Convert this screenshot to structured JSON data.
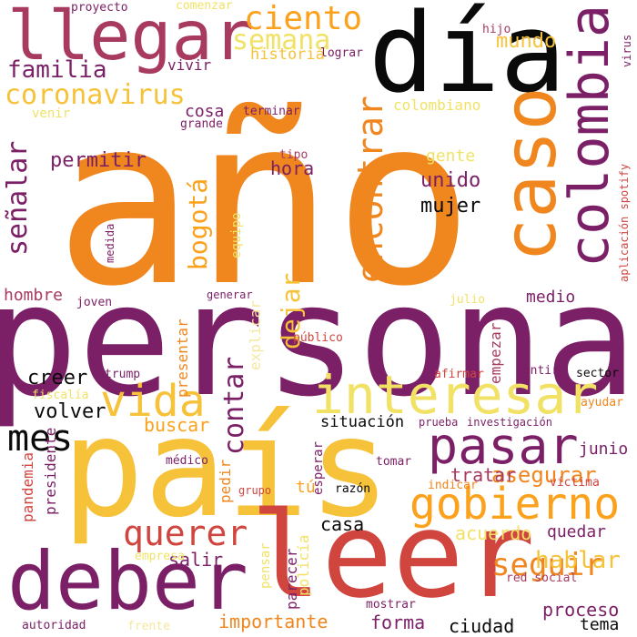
{
  "palette": {
    "black": "#0a0a0a",
    "purple": "#7b1f66",
    "magenta": "#a83a5f",
    "red": "#d1453f",
    "orange": "#f0861e",
    "amber": "#fba11c",
    "gold": "#f6c23a",
    "yellow": "#f1e266",
    "pale": "#f5e7a0"
  },
  "words": [
    {
      "id": "ano",
      "text": "año",
      "color": "orange",
      "rotated": false
    },
    {
      "id": "persona",
      "text": "persona",
      "color": "purple",
      "rotated": false
    },
    {
      "id": "pais",
      "text": "país",
      "color": "gold",
      "rotated": false
    },
    {
      "id": "leer",
      "text": "leer",
      "color": "red",
      "rotated": false
    },
    {
      "id": "dia",
      "text": "día",
      "color": "black",
      "rotated": false
    },
    {
      "id": "llegar",
      "text": "llegar",
      "color": "magenta",
      "rotated": false
    },
    {
      "id": "deber",
      "text": "deber",
      "color": "purple",
      "rotated": false
    },
    {
      "id": "caso",
      "text": "caso",
      "color": "orange",
      "rotated": true
    },
    {
      "id": "colombia",
      "text": "colombia",
      "color": "purple",
      "rotated": true
    },
    {
      "id": "interesar",
      "text": "interesar",
      "color": "yellow",
      "rotated": false
    },
    {
      "id": "pasar",
      "text": "pasar",
      "color": "purple",
      "rotated": false
    },
    {
      "id": "gobierno",
      "text": "gobierno",
      "color": "amber",
      "rotated": false
    },
    {
      "id": "vida",
      "text": "vida",
      "color": "gold",
      "rotated": false
    },
    {
      "id": "mes",
      "text": "mes",
      "color": "black",
      "rotated": false
    },
    {
      "id": "querer",
      "text": "querer",
      "color": "red",
      "rotated": false
    },
    {
      "id": "encontrar",
      "text": "encontrar",
      "color": "orange",
      "rotated": true
    },
    {
      "id": "ciento",
      "text": "ciento",
      "color": "amber",
      "rotated": false
    },
    {
      "id": "semana",
      "text": "semana",
      "color": "yellow",
      "rotated": false
    },
    {
      "id": "coronavirus",
      "text": "coronavirus",
      "color": "gold",
      "rotated": false
    },
    {
      "id": "familia",
      "text": "familia",
      "color": "purple",
      "rotated": false
    },
    {
      "id": "senalar",
      "text": "señalar",
      "color": "purple",
      "rotated": true
    },
    {
      "id": "bogota",
      "text": "bogotá",
      "color": "amber",
      "rotated": true
    },
    {
      "id": "contar",
      "text": "contar",
      "color": "purple",
      "rotated": true
    },
    {
      "id": "dejar",
      "text": "dejar",
      "color": "gold",
      "rotated": true
    },
    {
      "id": "seguir",
      "text": "seguir",
      "color": "orange",
      "rotated": false
    },
    {
      "id": "hablar",
      "text": "hablar",
      "color": "gold",
      "rotated": false
    },
    {
      "id": "asegurar",
      "text": "asegurar",
      "color": "orange",
      "rotated": false
    },
    {
      "id": "mundo",
      "text": "mundo",
      "color": "gold",
      "rotated": false
    },
    {
      "id": "historia",
      "text": "historia",
      "color": "gold",
      "rotated": false
    },
    {
      "id": "vivir",
      "text": "vivir",
      "color": "purple",
      "rotated": false
    },
    {
      "id": "permitir",
      "text": "permitir",
      "color": "purple",
      "rotated": false
    },
    {
      "id": "hora",
      "text": "hora",
      "color": "purple",
      "rotated": false
    },
    {
      "id": "unido",
      "text": "unido",
      "color": "purple",
      "rotated": false
    },
    {
      "id": "mujer",
      "text": "mujer",
      "color": "black",
      "rotated": false
    },
    {
      "id": "gente",
      "text": "gente",
      "color": "yellow",
      "rotated": false
    },
    {
      "id": "colombiano",
      "text": "colombiano",
      "color": "yellow",
      "rotated": false
    },
    {
      "id": "volver",
      "text": "volver",
      "color": "black",
      "rotated": false
    },
    {
      "id": "creer",
      "text": "creer",
      "color": "black",
      "rotated": false
    },
    {
      "id": "cosa",
      "text": "cosa",
      "color": "purple",
      "rotated": false
    },
    {
      "id": "medio",
      "text": "medio",
      "color": "purple",
      "rotated": false
    },
    {
      "id": "hombre",
      "text": "hombre",
      "color": "magenta",
      "rotated": false
    },
    {
      "id": "buscar",
      "text": "buscar",
      "color": "amber",
      "rotated": false
    },
    {
      "id": "situacion",
      "text": "situación",
      "color": "black",
      "rotated": false
    },
    {
      "id": "tratar",
      "text": "tratar",
      "color": "magenta",
      "rotated": false
    },
    {
      "id": "junio",
      "text": "junio",
      "color": "purple",
      "rotated": false
    },
    {
      "id": "acuerdo",
      "text": "acuerdo",
      "color": "yellow",
      "rotated": false
    },
    {
      "id": "quedar",
      "text": "quedar",
      "color": "purple",
      "rotated": false
    },
    {
      "id": "casa",
      "text": "casa",
      "color": "black",
      "rotated": false
    },
    {
      "id": "salir",
      "text": "salir",
      "color": "purple",
      "rotated": false
    },
    {
      "id": "importante",
      "text": "importante",
      "color": "orange",
      "rotated": false
    },
    {
      "id": "forma",
      "text": "forma",
      "color": "purple",
      "rotated": false
    },
    {
      "id": "ciudad",
      "text": "ciudad",
      "color": "black",
      "rotated": false
    },
    {
      "id": "proceso",
      "text": "proceso",
      "color": "purple",
      "rotated": false
    },
    {
      "id": "tema",
      "text": "tema",
      "color": "black",
      "rotated": false
    },
    {
      "id": "empezar",
      "text": "empezar",
      "color": "magenta",
      "rotated": true
    },
    {
      "id": "presentar",
      "text": "presentar",
      "color": "orange",
      "rotated": true
    },
    {
      "id": "explicar",
      "text": "explicar",
      "color": "pale",
      "rotated": true
    },
    {
      "id": "pandemia",
      "text": "pandemia",
      "color": "red",
      "rotated": true
    },
    {
      "id": "presidente",
      "text": "presidente",
      "color": "purple",
      "rotated": true
    },
    {
      "id": "pedir",
      "text": "pedir",
      "color": "orange",
      "rotated": true
    },
    {
      "id": "tu",
      "text": "tú",
      "color": "amber",
      "rotated": false
    },
    {
      "id": "esperar",
      "text": "esperar",
      "color": "purple",
      "rotated": true
    },
    {
      "id": "parecer",
      "text": "parecer",
      "color": "purple",
      "rotated": true
    },
    {
      "id": "policia",
      "text": "policía",
      "color": "yellow",
      "rotated": true
    },
    {
      "id": "pensar",
      "text": "pensar",
      "color": "yellow",
      "rotated": true
    },
    {
      "id": "equipo",
      "text": "equipo",
      "color": "yellow",
      "rotated": true
    },
    {
      "id": "proyecto",
      "text": "proyecto",
      "color": "purple",
      "rotated": false
    },
    {
      "id": "comenzar",
      "text": "comenzar",
      "color": "yellow",
      "rotated": false
    },
    {
      "id": "lograr",
      "text": "lograr",
      "color": "purple",
      "rotated": false
    },
    {
      "id": "hijo",
      "text": "hijo",
      "color": "magenta",
      "rotated": false
    },
    {
      "id": "virus",
      "text": "virus",
      "color": "purple",
      "rotated": true
    },
    {
      "id": "venir",
      "text": "venir",
      "color": "yellow",
      "rotated": false
    },
    {
      "id": "grande",
      "text": "grande",
      "color": "purple",
      "rotated": false
    },
    {
      "id": "terminar",
      "text": "terminar",
      "color": "purple",
      "rotated": false
    },
    {
      "id": "tipo",
      "text": "tipo",
      "color": "magenta",
      "rotated": false
    },
    {
      "id": "medida",
      "text": "medida",
      "color": "purple",
      "rotated": true
    },
    {
      "id": "aplicacion",
      "text": "aplicación spotify",
      "color": "red",
      "rotated": true
    },
    {
      "id": "joven",
      "text": "joven",
      "color": "purple",
      "rotated": false
    },
    {
      "id": "generar",
      "text": "generar",
      "color": "purple",
      "rotated": false
    },
    {
      "id": "julio",
      "text": "julio",
      "color": "yellow",
      "rotated": false
    },
    {
      "id": "publico",
      "text": "público",
      "color": "red",
      "rotated": false
    },
    {
      "id": "trump",
      "text": "trump",
      "color": "purple",
      "rotated": false
    },
    {
      "id": "afirmar",
      "text": "afirmar",
      "color": "red",
      "rotated": false
    },
    {
      "id": "sentir",
      "text": "sentir",
      "color": "purple",
      "rotated": false
    },
    {
      "id": "sector",
      "text": "sector",
      "color": "black",
      "rotated": false
    },
    {
      "id": "fiscalia",
      "text": "fiscalía",
      "color": "yellow",
      "rotated": false
    },
    {
      "id": "prueba",
      "text": "prueba",
      "color": "purple",
      "rotated": false
    },
    {
      "id": "investigacion",
      "text": "investigación",
      "color": "purple",
      "rotated": false
    },
    {
      "id": "ayudar",
      "text": "ayudar",
      "color": "orange",
      "rotated": false
    },
    {
      "id": "medico",
      "text": "médico",
      "color": "purple",
      "rotated": false
    },
    {
      "id": "tomar",
      "text": "tomar",
      "color": "purple",
      "rotated": false
    },
    {
      "id": "indicar",
      "text": "indicar",
      "color": "orange",
      "rotated": false
    },
    {
      "id": "victima",
      "text": "víctima",
      "color": "red",
      "rotated": false
    },
    {
      "id": "grupo",
      "text": "grupo",
      "color": "red",
      "rotated": false
    },
    {
      "id": "razon",
      "text": "razón",
      "color": "black",
      "rotated": false
    },
    {
      "id": "empresa",
      "text": "empresa",
      "color": "yellow",
      "rotated": false
    },
    {
      "id": "red_social",
      "text": "red social",
      "color": "magenta",
      "rotated": false
    },
    {
      "id": "mostrar",
      "text": "mostrar",
      "color": "purple",
      "rotated": false
    },
    {
      "id": "autoridad",
      "text": "autoridad",
      "color": "purple",
      "rotated": false
    },
    {
      "id": "frente",
      "text": "frente",
      "color": "pale",
      "rotated": false
    }
  ]
}
